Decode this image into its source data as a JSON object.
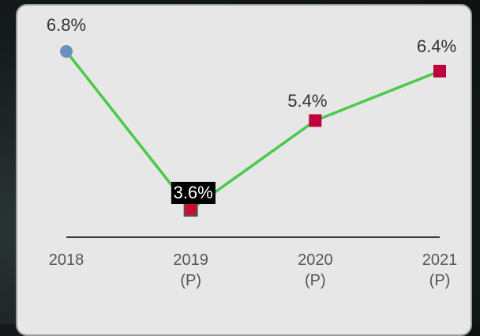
{
  "chart_data": {
    "type": "line",
    "categories": [
      "2018",
      "2019\n(P)",
      "2020\n(P)",
      "2021\n(P)"
    ],
    "values": [
      6.8,
      3.6,
      5.4,
      6.4
    ],
    "value_labels": [
      "6.8%",
      "3.6%",
      "5.4%",
      "6.4%"
    ],
    "color": "#4cc94c",
    "point_colors": [
      "#6d8ec0",
      "#c8102e",
      "#c0003c",
      "#c0003c"
    ],
    "markers": [
      "circle",
      "square",
      "square",
      "square"
    ],
    "ylim": [
      3,
      7
    ]
  }
}
